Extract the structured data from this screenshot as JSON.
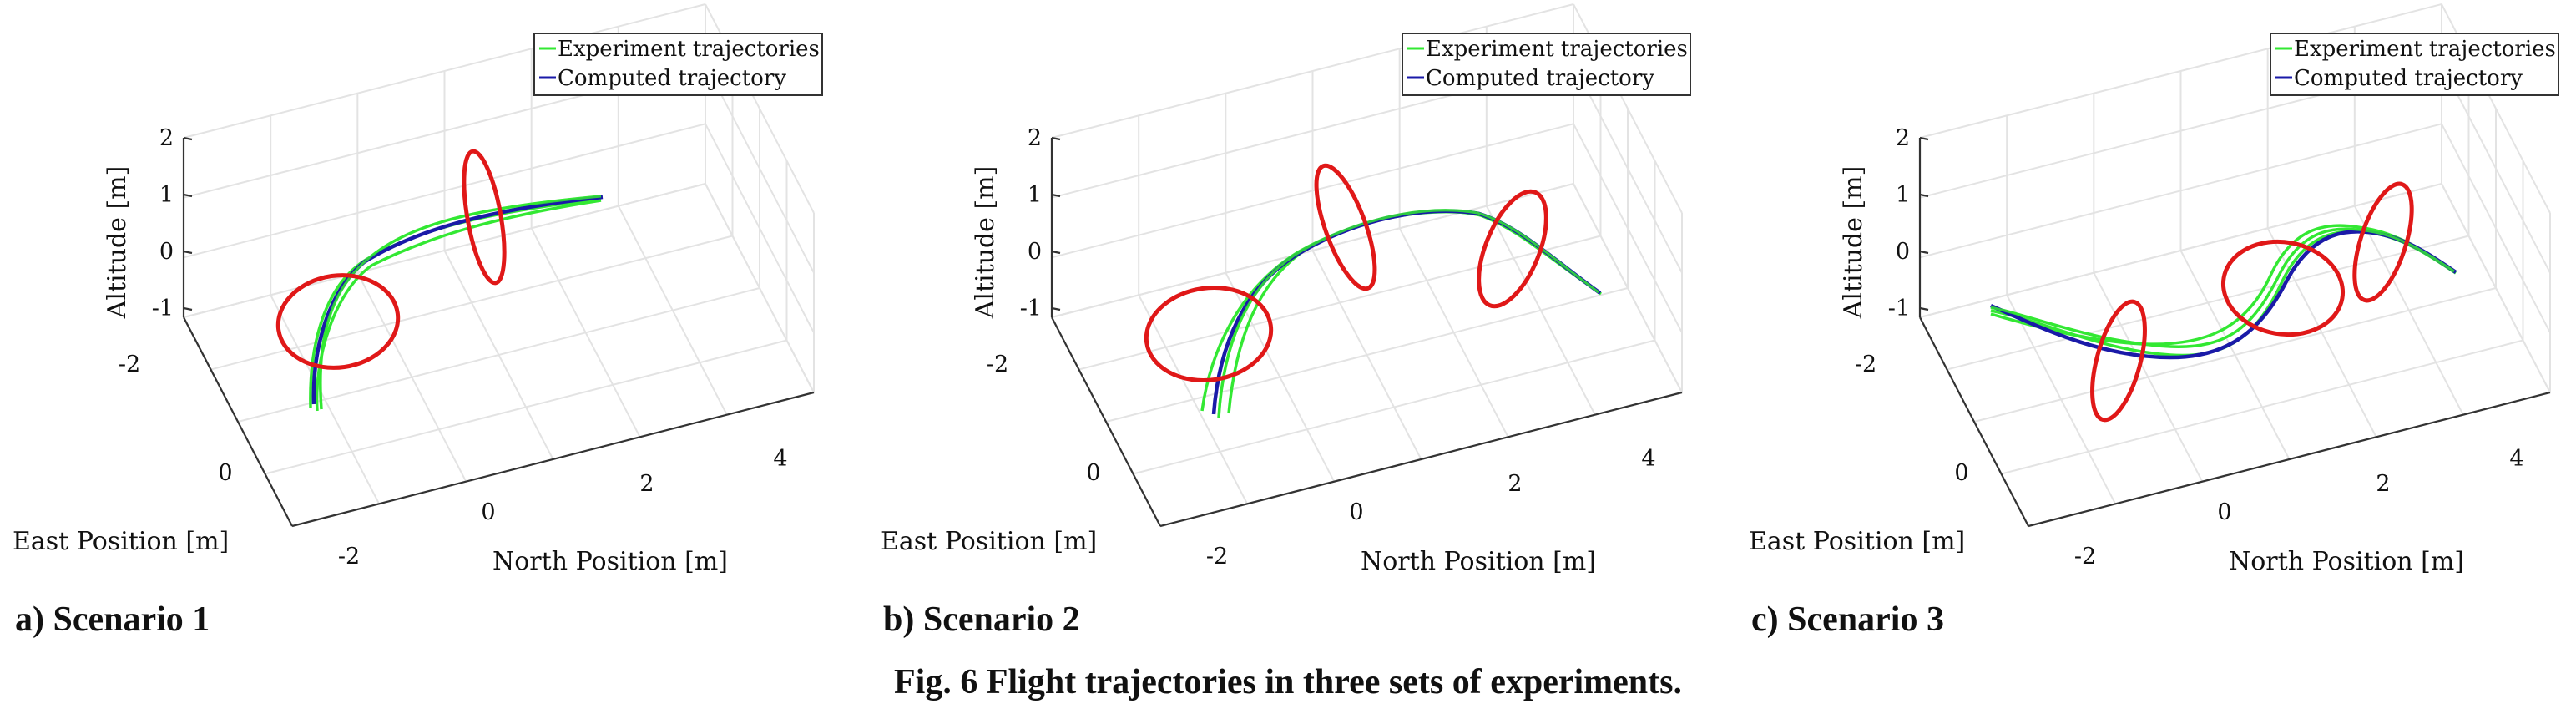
{
  "figure": {
    "caption": "Fig. 6    Flight trajectories in three sets of experiments."
  },
  "colors": {
    "experiment": "#33e833",
    "computed": "#1a1aa8",
    "gate": "#e01818"
  },
  "chart_data": [
    {
      "type": "line",
      "panel_label": "a) Scenario 1",
      "xlabel": "North Position [m]",
      "ylabel": "East Position [m]",
      "zlabel": "Altitude [m]",
      "x_ticks": [
        "0",
        "2",
        "4"
      ],
      "y_ticks": [
        "-2",
        "0"
      ],
      "z_ticks": [
        "2",
        "1",
        "0",
        "-1"
      ],
      "legend": [
        "Experiment trajectories",
        "Computed trajectory"
      ],
      "legend_position": "top-right",
      "grid": true
    },
    {
      "type": "line",
      "panel_label": "b) Scenario 2",
      "xlabel": "North Position [m]",
      "ylabel": "East Position [m]",
      "zlabel": "Altitude [m]",
      "x_ticks": [
        "0",
        "2",
        "4"
      ],
      "y_ticks": [
        "-2",
        "0"
      ],
      "z_ticks": [
        "2",
        "1",
        "0",
        "-1"
      ],
      "legend": [
        "Experiment trajectories",
        "Computed trajectory"
      ],
      "legend_position": "top-right",
      "grid": true
    },
    {
      "type": "line",
      "panel_label": "c) Scenario 3",
      "xlabel": "North Position [m]",
      "ylabel": "East Position [m]",
      "zlabel": "Altitude [m]",
      "x_ticks": [
        "0",
        "2",
        "4"
      ],
      "y_ticks": [
        "-2",
        "0"
      ],
      "z_ticks": [
        "2",
        "1",
        "0",
        "-1"
      ],
      "legend": [
        "Experiment trajectories",
        "Computed trajectory"
      ],
      "legend_position": "top-right",
      "grid": true
    }
  ]
}
